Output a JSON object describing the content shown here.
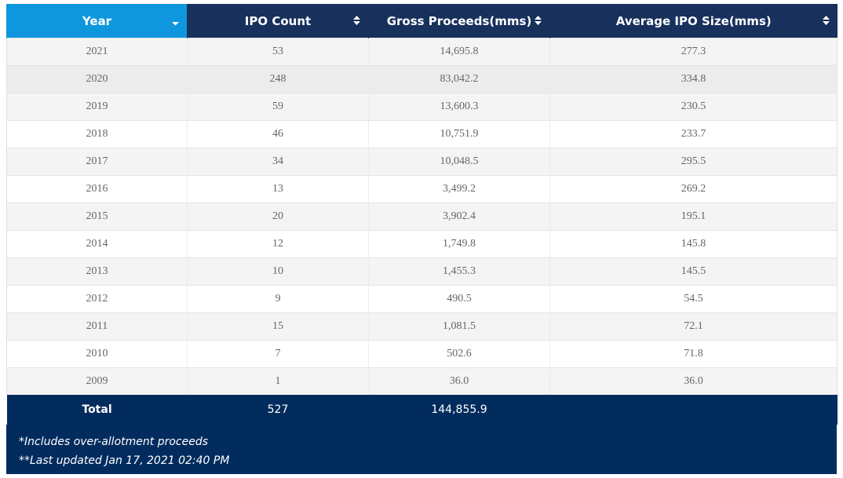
{
  "table": {
    "columns": [
      {
        "label": "Year",
        "sorted": true,
        "icon": "sort-desc-icon"
      },
      {
        "label": "IPO Count",
        "sorted": false,
        "icon": "sort-icon"
      },
      {
        "label": "Gross Proceeds(mms)",
        "sorted": false,
        "icon": "sort-icon"
      },
      {
        "label": "Average IPO Size(mms)",
        "sorted": false,
        "icon": "sort-icon"
      }
    ],
    "rows": [
      {
        "year": "2021",
        "count": "53",
        "proceeds": "14,695.8",
        "avg": "277.3"
      },
      {
        "year": "2020",
        "count": "248",
        "proceeds": "83,042.2",
        "avg": "334.8"
      },
      {
        "year": "2019",
        "count": "59",
        "proceeds": "13,600.3",
        "avg": "230.5"
      },
      {
        "year": "2018",
        "count": "46",
        "proceeds": "10,751.9",
        "avg": "233.7"
      },
      {
        "year": "2017",
        "count": "34",
        "proceeds": "10,048.5",
        "avg": "295.5"
      },
      {
        "year": "2016",
        "count": "13",
        "proceeds": "3,499.2",
        "avg": "269.2"
      },
      {
        "year": "2015",
        "count": "20",
        "proceeds": "3,902.4",
        "avg": "195.1"
      },
      {
        "year": "2014",
        "count": "12",
        "proceeds": "1,749.8",
        "avg": "145.8"
      },
      {
        "year": "2013",
        "count": "10",
        "proceeds": "1,455.3",
        "avg": "145.5"
      },
      {
        "year": "2012",
        "count": "9",
        "proceeds": "490.5",
        "avg": "54.5"
      },
      {
        "year": "2011",
        "count": "15",
        "proceeds": "1,081.5",
        "avg": "72.1"
      },
      {
        "year": "2010",
        "count": "7",
        "proceeds": "502.6",
        "avg": "71.8"
      },
      {
        "year": "2009",
        "count": "1",
        "proceeds": "36.0",
        "avg": "36.0"
      }
    ],
    "total": {
      "label": "Total",
      "count": "527",
      "proceeds": "144,855.9",
      "avg": ""
    }
  },
  "notes": [
    "*Includes over-allotment proceeds",
    "**Last updated Jan 17, 2021 02:40 PM"
  ],
  "colors": {
    "header": "#17305c",
    "header_sorted": "#0e97dc",
    "footer": "#032c5e"
  }
}
